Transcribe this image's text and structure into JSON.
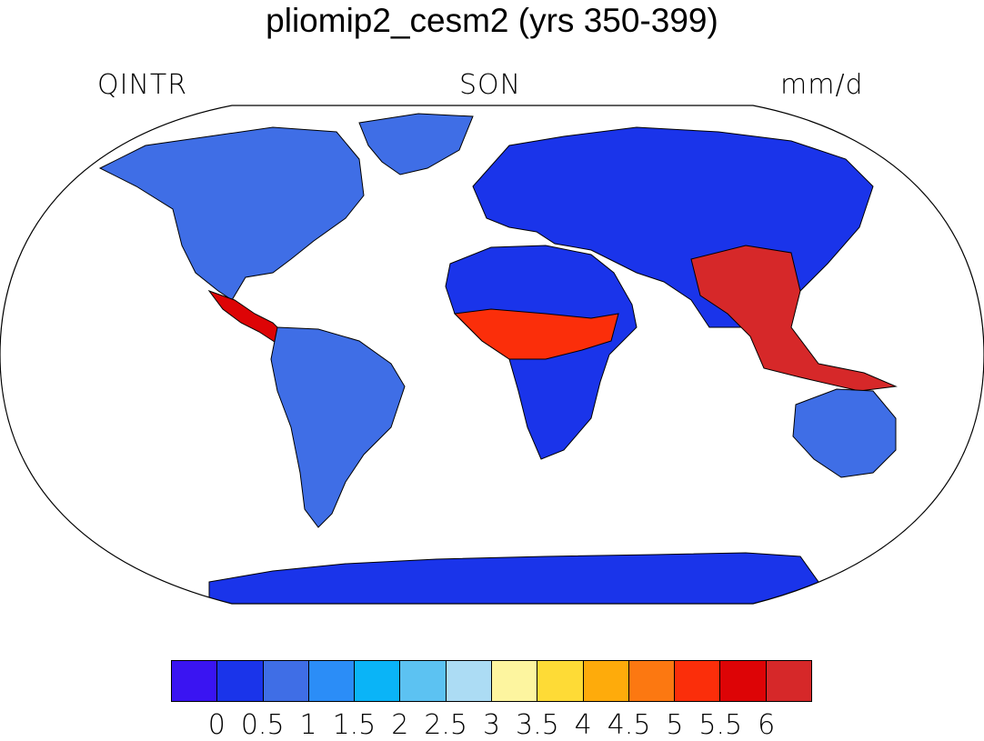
{
  "title": "pliomip2_cesm2 (yrs 350-399)",
  "variable": "QINTR",
  "season": "SON",
  "units": "mm/d",
  "colorbar": {
    "colors": [
      "#3a14f2",
      "#1a34ea",
      "#3f6ee6",
      "#2b8df7",
      "#0ab4f7",
      "#5cc2f2",
      "#acdcf4",
      "#fdf59f",
      "#fedb36",
      "#feab0b",
      "#fc7811",
      "#fb2e0a",
      "#dd0406",
      "#d62829"
    ],
    "labels": [
      "0",
      "0.5",
      "1",
      "1.5",
      "2",
      "2.5",
      "3",
      "3.5",
      "4",
      "4.5",
      "5",
      "5.5",
      "6"
    ]
  },
  "regions": [
    {
      "name": "north-america",
      "color": "#3f6ee6"
    },
    {
      "name": "south-america",
      "color": "#3f6ee6"
    },
    {
      "name": "africa",
      "color": "#1a34ea"
    },
    {
      "name": "eurasia",
      "color": "#1a34ea"
    },
    {
      "name": "australia",
      "color": "#3f6ee6"
    },
    {
      "name": "antarctica",
      "color": "#1a34ea"
    },
    {
      "name": "greenland",
      "color": "#3f6ee6"
    },
    {
      "name": "sahel-band",
      "color": "#fb2e0a"
    },
    {
      "name": "southeast-asia",
      "color": "#d62829"
    },
    {
      "name": "central-america",
      "color": "#dd0406"
    }
  ]
}
